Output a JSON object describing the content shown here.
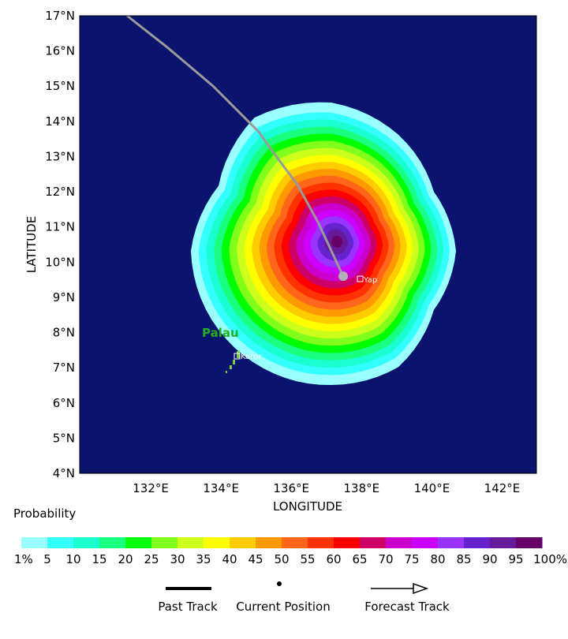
{
  "map": {
    "background_color": "#0a146e",
    "lat_labels": [
      "17°N",
      "16°N",
      "15°N",
      "14°N",
      "13°N",
      "12°N",
      "11°N",
      "10°N",
      "9°N",
      "8°N",
      "7°N",
      "6°N",
      "5°N",
      "4°N"
    ],
    "lon_labels": [
      "132°E",
      "134°E",
      "136°E",
      "138°E",
      "140°E",
      "142°E"
    ],
    "xlabel": "LONGITUDE",
    "ylabel": "LATITUDE",
    "places": {
      "yap": "Yap",
      "koror": "Koror",
      "palau": "Palau"
    },
    "current_position": {
      "lon": 137.5,
      "lat": 9.6
    },
    "past_track": [
      {
        "lon": 131.35,
        "lat": 17.0
      },
      {
        "lon": 132.5,
        "lat": 16.1
      },
      {
        "lon": 133.8,
        "lat": 15.0
      },
      {
        "lon": 135.1,
        "lat": 13.7
      },
      {
        "lon": 135.6,
        "lat": 13.0
      },
      {
        "lon": 136.2,
        "lat": 12.2
      },
      {
        "lon": 136.8,
        "lat": 11.1
      },
      {
        "lon": 137.5,
        "lat": 9.6
      }
    ],
    "probability_center": {
      "lon": 137.05,
      "lat": 10.35
    }
  },
  "legend": {
    "title": "Probability",
    "colors": [
      "#99ffff",
      "#33ffff",
      "#1affd1",
      "#1aff7f",
      "#00ff00",
      "#80ff1a",
      "#ccff1a",
      "#ffff00",
      "#ffcc00",
      "#ff9900",
      "#ff661a",
      "#ff3300",
      "#ff0000",
      "#cc0066",
      "#cc00cc",
      "#cc00ff",
      "#9933ff",
      "#6622cc",
      "#661a99",
      "#660066"
    ],
    "labels": [
      "1%",
      "5",
      "10",
      "15",
      "20",
      "25",
      "30",
      "35",
      "40",
      "45",
      "50",
      "55",
      "60",
      "65",
      "70",
      "75",
      "80",
      "85",
      "90",
      "95",
      "100%"
    ]
  },
  "track_legend": {
    "past_track": "Past Track",
    "current_position": "Current Position",
    "forecast_track": "Forecast Track"
  }
}
